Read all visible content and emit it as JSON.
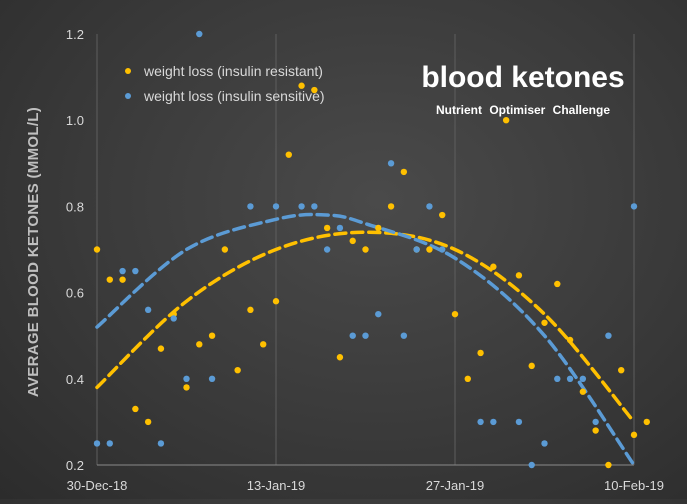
{
  "chart_data": {
    "type": "scatter",
    "title": "blood ketones",
    "subtitle": "Nutrient Optimiser Challenge",
    "ylabel": "AVERAGE BLOOD KETONES (MMOL/L)",
    "xlabel": "",
    "xlim": [
      "2018-12-30",
      "2019-02-10"
    ],
    "ylim": [
      0.2,
      1.2
    ],
    "x_ticks": [
      "2018-12-30",
      "2019-01-13",
      "2019-01-27",
      "2019-02-10"
    ],
    "x_tick_labels": [
      "30-Dec-18",
      "13-Jan-19",
      "27-Jan-19",
      "10-Feb-19"
    ],
    "y_ticks": [
      0.2,
      0.4,
      0.6,
      0.8,
      1.0,
      1.2
    ],
    "y_tick_labels": [
      "0.2",
      "0.4",
      "0.6",
      "0.8",
      "1.0",
      "1.2"
    ],
    "grid": "vertical",
    "legend_position": "top-left",
    "series": [
      {
        "name": "weight loss (insulin resistant)",
        "color": "#ffc000",
        "points": [
          [
            "2018-12-30",
            0.7
          ],
          [
            "2018-12-31",
            0.63
          ],
          [
            "2019-01-01",
            0.63
          ],
          [
            "2019-01-02",
            0.33
          ],
          [
            "2019-01-03",
            0.3
          ],
          [
            "2019-01-04",
            0.47
          ],
          [
            "2019-01-05",
            0.55
          ],
          [
            "2019-01-06",
            0.38
          ],
          [
            "2019-01-07",
            0.48
          ],
          [
            "2019-01-08",
            0.5
          ],
          [
            "2019-01-09",
            0.7
          ],
          [
            "2019-01-10",
            0.42
          ],
          [
            "2019-01-11",
            0.56
          ],
          [
            "2019-01-12",
            0.48
          ],
          [
            "2019-01-13",
            0.58
          ],
          [
            "2019-01-14",
            0.92
          ],
          [
            "2019-01-15",
            1.08
          ],
          [
            "2019-01-16",
            1.07
          ],
          [
            "2019-01-17",
            0.75
          ],
          [
            "2019-01-18",
            0.45
          ],
          [
            "2019-01-19",
            0.72
          ],
          [
            "2019-01-20",
            0.7
          ],
          [
            "2019-01-21",
            0.75
          ],
          [
            "2019-01-22",
            0.8
          ],
          [
            "2019-01-23",
            0.88
          ],
          [
            "2019-01-24",
            0.7
          ],
          [
            "2019-01-25",
            0.7
          ],
          [
            "2019-01-26",
            0.78
          ],
          [
            "2019-01-27",
            0.55
          ],
          [
            "2019-01-28",
            0.4
          ],
          [
            "2019-01-29",
            0.46
          ],
          [
            "2019-01-30",
            0.66
          ],
          [
            "2019-01-31",
            1.0
          ],
          [
            "2019-02-01",
            0.64
          ],
          [
            "2019-02-02",
            0.43
          ],
          [
            "2019-02-03",
            0.53
          ],
          [
            "2019-02-04",
            0.62
          ],
          [
            "2019-02-05",
            0.49
          ],
          [
            "2019-02-06",
            0.37
          ],
          [
            "2019-02-07",
            0.28
          ],
          [
            "2019-02-08",
            0.2
          ],
          [
            "2019-02-09",
            0.42
          ],
          [
            "2019-02-10",
            0.27
          ],
          [
            "2019-02-11",
            0.3
          ]
        ]
      },
      {
        "name": "weight loss (insulin sensitive)",
        "color": "#5b9bd5",
        "points": [
          [
            "2018-12-30",
            0.25
          ],
          [
            "2018-12-31",
            0.25
          ],
          [
            "2019-01-01",
            0.65
          ],
          [
            "2019-01-02",
            0.65
          ],
          [
            "2019-01-03",
            0.56
          ],
          [
            "2019-01-04",
            0.25
          ],
          [
            "2019-01-05",
            0.54
          ],
          [
            "2019-01-06",
            0.4
          ],
          [
            "2019-01-07",
            1.2
          ],
          [
            "2019-01-08",
            0.4
          ],
          [
            "2019-01-11",
            0.8
          ],
          [
            "2019-01-13",
            0.8
          ],
          [
            "2019-01-15",
            0.8
          ],
          [
            "2019-01-16",
            0.8
          ],
          [
            "2019-01-17",
            0.7
          ],
          [
            "2019-01-18",
            0.75
          ],
          [
            "2019-01-19",
            0.5
          ],
          [
            "2019-01-20",
            0.5
          ],
          [
            "2019-01-21",
            0.55
          ],
          [
            "2019-01-22",
            0.9
          ],
          [
            "2019-01-23",
            0.5
          ],
          [
            "2019-01-24",
            0.7
          ],
          [
            "2019-01-25",
            0.8
          ],
          [
            "2019-01-26",
            0.7
          ],
          [
            "2019-01-29",
            0.3
          ],
          [
            "2019-01-30",
            0.3
          ],
          [
            "2019-02-01",
            0.3
          ],
          [
            "2019-02-02",
            0.2
          ],
          [
            "2019-02-03",
            0.25
          ],
          [
            "2019-02-04",
            0.4
          ],
          [
            "2019-02-05",
            0.4
          ],
          [
            "2019-02-06",
            0.4
          ],
          [
            "2019-02-07",
            0.3
          ],
          [
            "2019-02-08",
            0.5
          ],
          [
            "2019-02-10",
            0.8
          ]
        ]
      }
    ],
    "trendlines": [
      {
        "series": "weight loss (insulin resistant)",
        "style": "dashed polynomial",
        "color": "#ffc000",
        "points": [
          [
            "2018-12-30",
            0.38
          ],
          [
            "2019-01-06",
            0.58
          ],
          [
            "2019-01-13",
            0.7
          ],
          [
            "2019-01-20",
            0.74
          ],
          [
            "2019-01-27",
            0.7
          ],
          [
            "2019-02-03",
            0.55
          ],
          [
            "2019-02-10",
            0.3
          ]
        ]
      },
      {
        "series": "weight loss (insulin sensitive)",
        "style": "dashed polynomial",
        "color": "#5b9bd5",
        "points": [
          [
            "2018-12-30",
            0.52
          ],
          [
            "2019-01-06",
            0.7
          ],
          [
            "2019-01-13",
            0.77
          ],
          [
            "2019-01-17",
            0.78
          ],
          [
            "2019-01-20",
            0.76
          ],
          [
            "2019-01-27",
            0.68
          ],
          [
            "2019-02-03",
            0.5
          ],
          [
            "2019-02-10",
            0.2
          ]
        ]
      }
    ]
  }
}
